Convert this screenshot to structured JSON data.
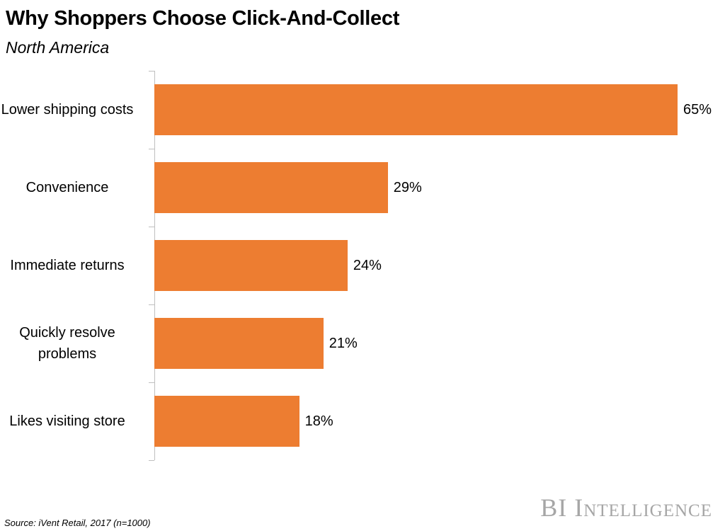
{
  "chart_data": {
    "type": "bar",
    "orientation": "horizontal",
    "title": "Why Shoppers Choose Click-And-Collect",
    "subtitle": "North America",
    "categories": [
      "Lower shipping costs",
      "Convenience",
      "Immediate returns",
      "Quickly resolve problems",
      "Likes visiting store"
    ],
    "values": [
      65,
      29,
      24,
      21,
      18
    ],
    "value_labels": [
      "65%",
      "29%",
      "24%",
      "21%",
      "18%"
    ],
    "color": "#ed7d31",
    "source": "Source: iVent Retail, 2017 (n=1000)",
    "brand": "BI Intelligence"
  }
}
